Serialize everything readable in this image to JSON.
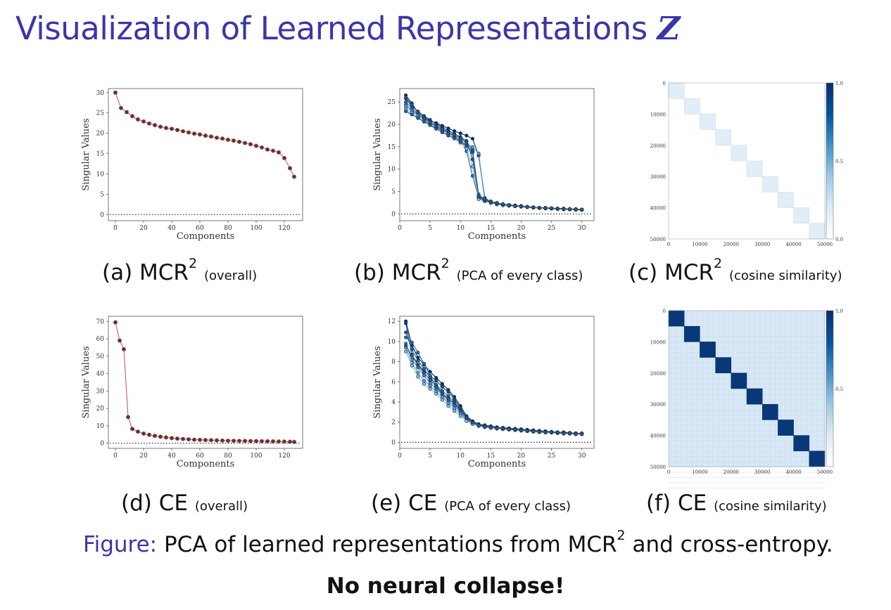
{
  "title": {
    "text": "Visualization of Learned Representations",
    "symbol": "Z"
  },
  "captions": {
    "a": {
      "lead": "(a) MCR",
      "sup": "2",
      "note": "(overall)"
    },
    "b": {
      "lead": "(b) MCR",
      "sup": "2",
      "note": "(PCA of every class)"
    },
    "c": {
      "lead": "(c) MCR",
      "sup": "2",
      "note": "(cosine similarity)"
    },
    "d": {
      "lead": "(d) CE",
      "note": "(overall)"
    },
    "e": {
      "lead": "(e) CE",
      "note": "(PCA of every class)"
    },
    "f": {
      "lead": "(f) CE",
      "note": "(cosine similarity)"
    }
  },
  "figure_caption": {
    "label": "Figure:",
    "text": "PCA of learned representations from MCR",
    "sup": "2",
    "tail": "and cross-entropy."
  },
  "conclusion": "No neural collapse!",
  "colors": {
    "title": "#3b36a8",
    "line_red": "#c0504d",
    "class_palette": [
      "#08306b",
      "#0b4f8a",
      "#1f6fb5",
      "#3a8ccf",
      "#5da2d6",
      "#89bde6",
      "#2b5f8f",
      "#46536b",
      "#6b7c93",
      "#16416f"
    ]
  },
  "chart_data": [
    {
      "id": "a",
      "type": "line",
      "xlabel": "Components",
      "ylabel": "Singular Values",
      "xlim": [
        -5,
        133
      ],
      "ylim": [
        -1.5,
        31
      ],
      "xticks": [
        0,
        20,
        40,
        60,
        80,
        100,
        120
      ],
      "yticks": [
        0,
        5,
        10,
        15,
        20,
        25,
        30
      ],
      "x": [
        0,
        4,
        8,
        12,
        16,
        20,
        24,
        28,
        32,
        36,
        40,
        44,
        48,
        52,
        56,
        60,
        64,
        68,
        72,
        76,
        80,
        84,
        88,
        92,
        96,
        100,
        104,
        108,
        112,
        116,
        120,
        124,
        127
      ],
      "values": [
        30,
        26.2,
        25.2,
        24.2,
        23.4,
        22.9,
        22.4,
        22.0,
        21.6,
        21.3,
        21.1,
        20.8,
        20.5,
        20.2,
        19.9,
        19.7,
        19.4,
        19.2,
        18.9,
        18.7,
        18.4,
        18.2,
        17.9,
        17.6,
        17.3,
        16.9,
        16.5,
        16.0,
        15.7,
        15.3,
        13.9,
        11.4,
        9.3
      ],
      "baseline": 0
    },
    {
      "id": "b",
      "type": "line",
      "xlabel": "Components",
      "ylabel": "Singular Values",
      "xlim": [
        0,
        32
      ],
      "ylim": [
        -1.5,
        28
      ],
      "xticks": [
        0,
        5,
        10,
        15,
        20,
        25,
        30
      ],
      "yticks": [
        0,
        5,
        10,
        15,
        20,
        25
      ],
      "x": [
        1,
        2,
        3,
        4,
        5,
        6,
        7,
        8,
        9,
        10,
        11,
        12,
        13,
        14,
        15,
        16,
        17,
        18,
        19,
        20,
        21,
        22,
        23,
        24,
        25,
        26,
        27,
        28,
        29,
        30
      ],
      "series": [
        {
          "values": [
            26.5,
            24.7,
            22.5,
            21.6,
            20.8,
            20.3,
            19.7,
            19.1,
            18.5,
            18.0,
            17.5,
            16.8,
            13.0,
            3.6,
            2.7,
            2.3,
            2.1,
            1.9,
            1.8,
            1.7,
            1.6,
            1.5,
            1.4,
            1.3,
            1.3,
            1.2,
            1.2,
            1.1,
            1.1,
            1.0
          ]
        },
        {
          "values": [
            25.8,
            24.0,
            22.9,
            21.9,
            21.0,
            20.1,
            19.3,
            18.6,
            17.9,
            17.2,
            16.3,
            12.2,
            4.0,
            3.1,
            2.7,
            2.4,
            2.2,
            2.0,
            1.9,
            1.8,
            1.6,
            1.5,
            1.4,
            1.4,
            1.3,
            1.2,
            1.2,
            1.1,
            1.0,
            1.0
          ]
        },
        {
          "values": [
            25.0,
            23.6,
            22.3,
            21.1,
            20.0,
            19.2,
            18.7,
            18.0,
            17.4,
            16.5,
            14.0,
            8.5,
            3.6,
            2.9,
            2.5,
            2.2,
            2.0,
            1.9,
            1.7,
            1.6,
            1.5,
            1.4,
            1.3,
            1.3,
            1.2,
            1.1,
            1.1,
            1.0,
            1.0,
            0.9
          ]
        },
        {
          "values": [
            24.4,
            23.2,
            22.1,
            21.3,
            20.5,
            19.8,
            19.0,
            18.3,
            17.3,
            16.4,
            15.3,
            13.7,
            4.4,
            3.2,
            2.8,
            2.5,
            2.2,
            2.0,
            1.9,
            1.7,
            1.6,
            1.5,
            1.4,
            1.3,
            1.3,
            1.2,
            1.1,
            1.1,
            1.0,
            1.0
          ]
        },
        {
          "values": [
            24.0,
            22.9,
            22.0,
            21.0,
            20.3,
            19.5,
            18.8,
            18.1,
            17.2,
            16.6,
            15.8,
            14.9,
            13.5,
            3.0,
            2.6,
            2.3,
            2.1,
            1.9,
            1.8,
            1.7,
            1.6,
            1.5,
            1.4,
            1.3,
            1.2,
            1.2,
            1.1,
            1.1,
            1.0,
            1.0
          ]
        },
        {
          "values": [
            23.4,
            22.6,
            21.6,
            20.8,
            19.9,
            19.1,
            18.2,
            17.5,
            16.8,
            15.9,
            14.6,
            10.6,
            3.3,
            2.8,
            2.4,
            2.1,
            1.9,
            1.8,
            1.7,
            1.6,
            1.5,
            1.4,
            1.3,
            1.2,
            1.2,
            1.1,
            1.0,
            1.0,
            0.9,
            0.9
          ]
        },
        {
          "values": [
            22.9,
            22.2,
            21.4,
            20.6,
            19.8,
            19.0,
            18.3,
            17.6,
            17.0,
            16.1,
            15.2,
            14.0,
            3.8,
            3.0,
            2.6,
            2.3,
            2.1,
            1.9,
            1.8,
            1.7,
            1.5,
            1.4,
            1.4,
            1.3,
            1.2,
            1.1,
            1.1,
            1.0,
            1.0,
            0.9
          ]
        },
        {
          "values": [
            26.0,
            24.4,
            22.7,
            21.4,
            20.5,
            19.7,
            18.9,
            18.2,
            17.6,
            16.9,
            16.0,
            14.2,
            4.1,
            3.3,
            2.8,
            2.4,
            2.2,
            2.0,
            1.8,
            1.7,
            1.6,
            1.5,
            1.4,
            1.3,
            1.3,
            1.2,
            1.1,
            1.1,
            1.0,
            1.0
          ]
        }
      ],
      "baseline": 0
    },
    {
      "id": "c",
      "type": "heatmap",
      "n_blocks": 10,
      "ticks": [
        0,
        10000,
        20000,
        30000,
        40000,
        50000
      ],
      "xticks": [
        0,
        10000,
        20000,
        30000,
        40000,
        50000
      ],
      "colorbar": {
        "min": 0.0,
        "max": 1.0,
        "ticks": [
          0.0,
          0.5,
          1.0
        ]
      },
      "diag_value": 0.18,
      "off_diag_value": 0.0
    },
    {
      "id": "d",
      "type": "line",
      "xlabel": "Components",
      "ylabel": "Singular Values",
      "xlim": [
        -5,
        133
      ],
      "ylim": [
        -3,
        73
      ],
      "xticks": [
        0,
        20,
        40,
        60,
        80,
        100,
        120
      ],
      "yticks": [
        0,
        10,
        20,
        30,
        40,
        50,
        60,
        70
      ],
      "x": [
        0,
        3,
        6,
        9,
        12,
        16,
        20,
        24,
        28,
        32,
        36,
        40,
        44,
        48,
        52,
        56,
        60,
        64,
        68,
        72,
        76,
        80,
        84,
        88,
        92,
        96,
        100,
        104,
        108,
        112,
        116,
        120,
        124,
        127
      ],
      "values": [
        69.5,
        59,
        54,
        15,
        8.2,
        6.6,
        5.5,
        4.8,
        4.2,
        3.7,
        3.3,
        2.9,
        2.6,
        2.4,
        2.2,
        2.0,
        1.9,
        1.8,
        1.7,
        1.6,
        1.5,
        1.4,
        1.35,
        1.3,
        1.25,
        1.2,
        1.15,
        1.1,
        1.05,
        1.0,
        0.95,
        0.9,
        0.8,
        0.7
      ],
      "baseline": 0
    },
    {
      "id": "e",
      "type": "line",
      "xlabel": "Components",
      "ylabel": "Singular Values",
      "xlim": [
        0,
        32
      ],
      "ylim": [
        -0.6,
        12.5
      ],
      "xticks": [
        0,
        5,
        10,
        15,
        20,
        25,
        30
      ],
      "yticks": [
        0,
        2,
        4,
        6,
        8,
        10,
        12
      ],
      "x": [
        1,
        2,
        3,
        4,
        5,
        6,
        7,
        8,
        9,
        10,
        11,
        12,
        13,
        14,
        15,
        16,
        17,
        18,
        19,
        20,
        21,
        22,
        23,
        24,
        25,
        26,
        27,
        28,
        29,
        30
      ],
      "series": [
        {
          "values": [
            12.0,
            9.6,
            8.4,
            7.7,
            7.0,
            6.4,
            5.8,
            5.2,
            4.5,
            3.6,
            2.6,
            2.1,
            1.8,
            1.7,
            1.6,
            1.5,
            1.45,
            1.4,
            1.35,
            1.3,
            1.25,
            1.2,
            1.15,
            1.1,
            1.05,
            1.0,
            1.0,
            0.95,
            0.9,
            0.9
          ]
        },
        {
          "values": [
            11.8,
            8.7,
            7.7,
            7.1,
            6.6,
            6.1,
            5.5,
            5.0,
            4.3,
            3.4,
            2.5,
            2.0,
            1.8,
            1.6,
            1.55,
            1.5,
            1.4,
            1.35,
            1.3,
            1.25,
            1.2,
            1.15,
            1.1,
            1.05,
            1.0,
            1.0,
            0.95,
            0.9,
            0.9,
            0.85
          ]
        },
        {
          "values": [
            10.4,
            9.9,
            8.9,
            7.8,
            6.6,
            5.6,
            4.9,
            4.3,
            3.8,
            3.1,
            2.4,
            2.0,
            1.75,
            1.6,
            1.5,
            1.45,
            1.4,
            1.35,
            1.3,
            1.25,
            1.2,
            1.15,
            1.1,
            1.05,
            1.0,
            0.95,
            0.95,
            0.9,
            0.85,
            0.85
          ]
        },
        {
          "values": [
            9.8,
            8.2,
            7.4,
            6.6,
            5.9,
            5.3,
            4.7,
            4.1,
            3.6,
            3.0,
            2.3,
            1.9,
            1.7,
            1.55,
            1.5,
            1.4,
            1.35,
            1.3,
            1.25,
            1.2,
            1.15,
            1.1,
            1.05,
            1.0,
            1.0,
            0.95,
            0.9,
            0.9,
            0.85,
            0.8
          ]
        },
        {
          "values": [
            9.4,
            7.9,
            6.9,
            6.1,
            5.6,
            5.0,
            4.5,
            3.9,
            3.4,
            2.8,
            2.2,
            1.85,
            1.65,
            1.5,
            1.45,
            1.4,
            1.3,
            1.25,
            1.2,
            1.15,
            1.1,
            1.05,
            1.0,
            1.0,
            0.95,
            0.9,
            0.9,
            0.85,
            0.8,
            0.8
          ]
        },
        {
          "values": [
            9.0,
            7.6,
            6.5,
            5.8,
            5.3,
            4.8,
            4.2,
            3.6,
            3.1,
            2.6,
            2.1,
            1.8,
            1.6,
            1.5,
            1.4,
            1.35,
            1.3,
            1.25,
            1.2,
            1.15,
            1.1,
            1.05,
            1.0,
            0.95,
            0.95,
            0.9,
            0.85,
            0.85,
            0.8,
            0.8
          ]
        },
        {
          "values": [
            10.9,
            9.2,
            8.1,
            7.3,
            6.4,
            5.7,
            5.1,
            4.6,
            4.0,
            3.3,
            2.5,
            2.0,
            1.75,
            1.6,
            1.5,
            1.45,
            1.4,
            1.35,
            1.3,
            1.25,
            1.2,
            1.15,
            1.1,
            1.05,
            1.0,
            1.0,
            0.95,
            0.9,
            0.9,
            0.85
          ]
        },
        {
          "values": [
            9.6,
            8.6,
            7.6,
            6.9,
            6.2,
            5.5,
            4.8,
            4.3,
            3.9,
            3.2,
            2.4,
            1.95,
            1.7,
            1.55,
            1.5,
            1.4,
            1.35,
            1.3,
            1.25,
            1.2,
            1.15,
            1.1,
            1.05,
            1.0,
            1.0,
            0.95,
            0.9,
            0.9,
            0.85,
            0.85
          ]
        }
      ],
      "baseline": 0
    },
    {
      "id": "f",
      "type": "heatmap",
      "n_blocks": 10,
      "ticks": [
        0,
        10000,
        20000,
        30000,
        40000,
        50000
      ],
      "xticks": [
        0,
        10000,
        20000,
        30000,
        40000,
        50000
      ],
      "colorbar": {
        "min": 0.0,
        "max": 1.0,
        "ticks": [
          0.5,
          1.0
        ]
      },
      "diag_value": 0.95,
      "off_diag_value": 0.22
    }
  ]
}
